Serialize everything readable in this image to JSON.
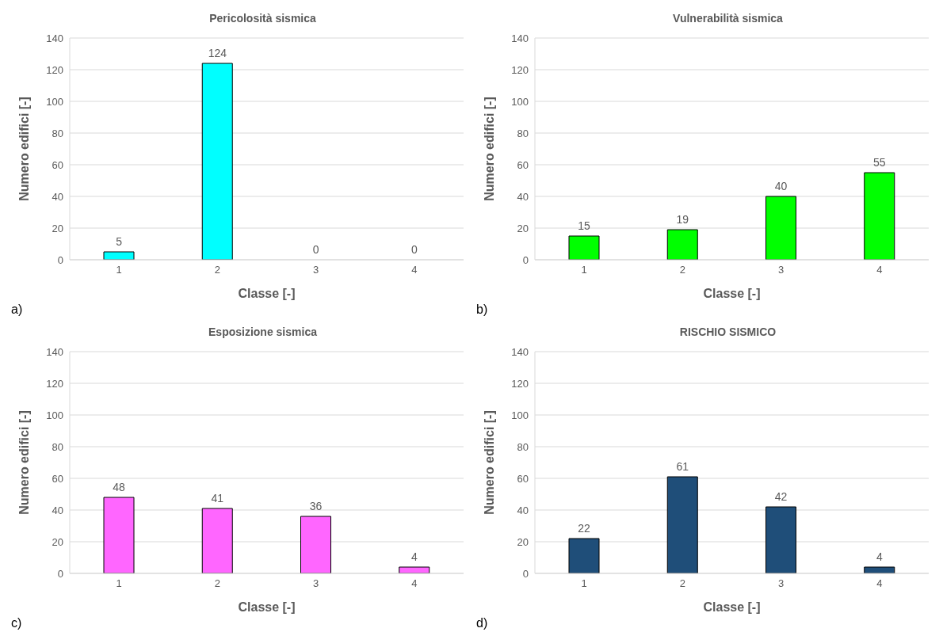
{
  "chart_data": [
    {
      "type": "bar",
      "title": "Pericolosità sismica",
      "xlabel": "Classe [-]",
      "ylabel": "Numero edifici [-]",
      "categories": [
        "1",
        "2",
        "3",
        "4"
      ],
      "values": [
        5,
        124,
        0,
        0
      ],
      "color": "#00ffff",
      "ylim": [
        0,
        140
      ],
      "yticks": [
        0,
        20,
        40,
        60,
        80,
        100,
        120,
        140
      ],
      "grid": "y",
      "data_labels": true,
      "annotations": [
        "a)"
      ]
    },
    {
      "type": "bar",
      "title": "Vulnerabilità sismica",
      "xlabel": "Classe [-]",
      "ylabel": "Numero edifici [-]",
      "categories": [
        "1",
        "2",
        "3",
        "4"
      ],
      "values": [
        15,
        19,
        40,
        55
      ],
      "color": "#00ff00",
      "ylim": [
        0,
        140
      ],
      "yticks": [
        0,
        20,
        40,
        60,
        80,
        100,
        120,
        140
      ],
      "grid": "y",
      "data_labels": true,
      "annotations": [
        "b)"
      ]
    },
    {
      "type": "bar",
      "title": "Esposizione sismica",
      "xlabel": "Classe [-]",
      "ylabel": "Numero edifici [-]",
      "categories": [
        "1",
        "2",
        "3",
        "4"
      ],
      "values": [
        48,
        41,
        36,
        4
      ],
      "color": "#ff66ff",
      "ylim": [
        0,
        140
      ],
      "yticks": [
        0,
        20,
        40,
        60,
        80,
        100,
        120,
        140
      ],
      "grid": "y",
      "data_labels": true,
      "annotations": [
        "c)"
      ]
    },
    {
      "type": "bar",
      "title": "RISCHIO SISMICO",
      "xlabel": "Classe [-]",
      "ylabel": "Numero edifici [-]",
      "categories": [
        "1",
        "2",
        "3",
        "4"
      ],
      "values": [
        22,
        61,
        42,
        4
      ],
      "color": "#1f4e79",
      "ylim": [
        0,
        140
      ],
      "yticks": [
        0,
        20,
        40,
        60,
        80,
        100,
        120,
        140
      ],
      "grid": "y",
      "data_labels": true,
      "annotations": [
        "d)"
      ]
    }
  ]
}
